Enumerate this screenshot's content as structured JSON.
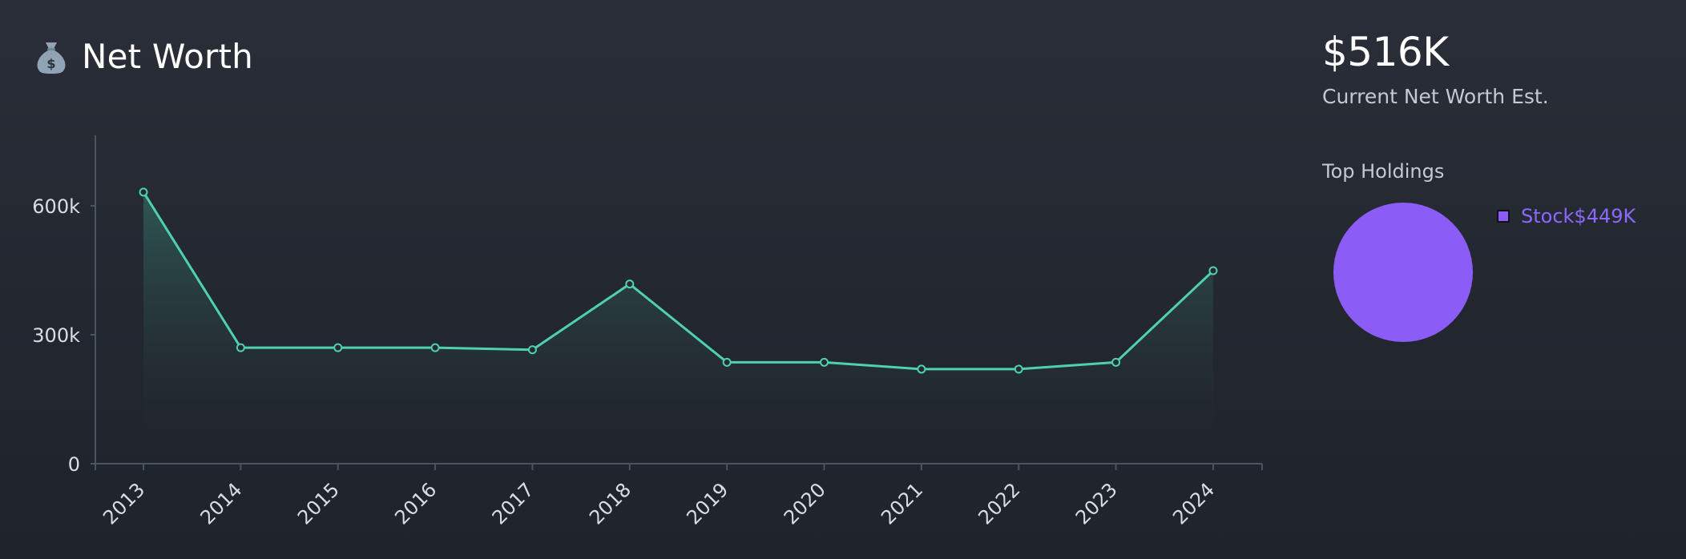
{
  "header": {
    "title": "Net Worth",
    "icon": "money-bag-icon"
  },
  "summary": {
    "value": "$516K",
    "subtitle": "Current Net Worth Est."
  },
  "holdings": {
    "title": "Top Holdings",
    "items": [
      {
        "label": "Stock",
        "value": "$449K",
        "share": 1.0,
        "color": "#8b5cf6"
      }
    ]
  },
  "colors": {
    "line": "#4fd1b0",
    "axis": "#4a5563",
    "pie": "#8b5cf6",
    "legend_text": "#8b68ff"
  },
  "chart_data": {
    "type": "area",
    "x": [
      "2013",
      "2014",
      "2015",
      "2016",
      "2017",
      "2018",
      "2019",
      "2020",
      "2021",
      "2022",
      "2023",
      "2024"
    ],
    "series": [
      {
        "values": [
          632000,
          270000,
          270000,
          270000,
          265000,
          418000,
          236000,
          236000,
          220000,
          220000,
          236000,
          449000
        ]
      }
    ],
    "yticks": [
      {
        "value": 0,
        "label": "0"
      },
      {
        "value": 300000,
        "label": "300k"
      },
      {
        "value": 600000,
        "label": "600k"
      }
    ],
    "ylim": [
      0,
      760000
    ],
    "grid": false,
    "title": "",
    "xlabel": "",
    "ylabel": ""
  }
}
